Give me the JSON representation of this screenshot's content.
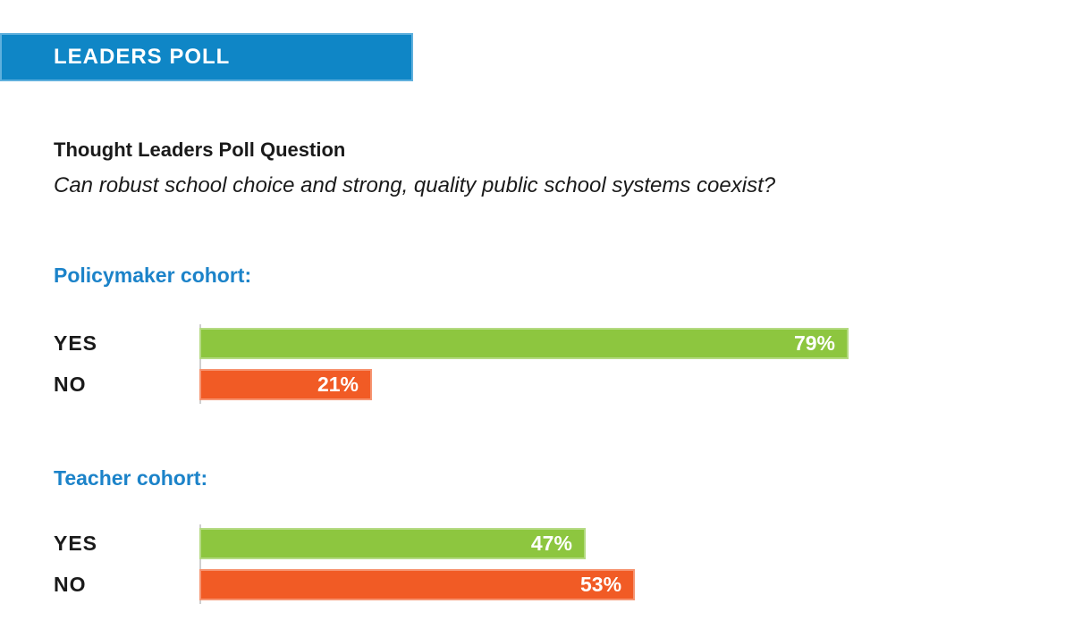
{
  "banner": {
    "label": "LEADERS POLL",
    "bg_color": "#0f86c6",
    "text_color": "#ffffff"
  },
  "poll": {
    "title": "Thought Leaders Poll Question",
    "question": "Can robust school choice and strong, quality public school systems coexist?"
  },
  "colors": {
    "yes_green": "#8dc63f",
    "no_orange": "#f15b25",
    "heading_blue": "#1c83c9",
    "axis_gray": "#cfcfcf",
    "value_label": "#ffffff"
  },
  "chart_data": [
    {
      "type": "bar",
      "title": "Policymaker cohort:",
      "orientation": "horizontal",
      "categories": [
        "YES",
        "NO"
      ],
      "values": [
        79,
        21
      ],
      "value_labels": [
        "79%",
        "21%"
      ],
      "colors": [
        "#8dc63f",
        "#f15b25"
      ],
      "xlim": [
        0,
        100
      ],
      "grid": false,
      "legend": "none"
    },
    {
      "type": "bar",
      "title": "Teacher cohort:",
      "orientation": "horizontal",
      "categories": [
        "YES",
        "NO"
      ],
      "values": [
        47,
        53
      ],
      "value_labels": [
        "47%",
        "53%"
      ],
      "colors": [
        "#8dc63f",
        "#f15b25"
      ],
      "xlim": [
        0,
        100
      ],
      "grid": false,
      "legend": "none"
    }
  ]
}
